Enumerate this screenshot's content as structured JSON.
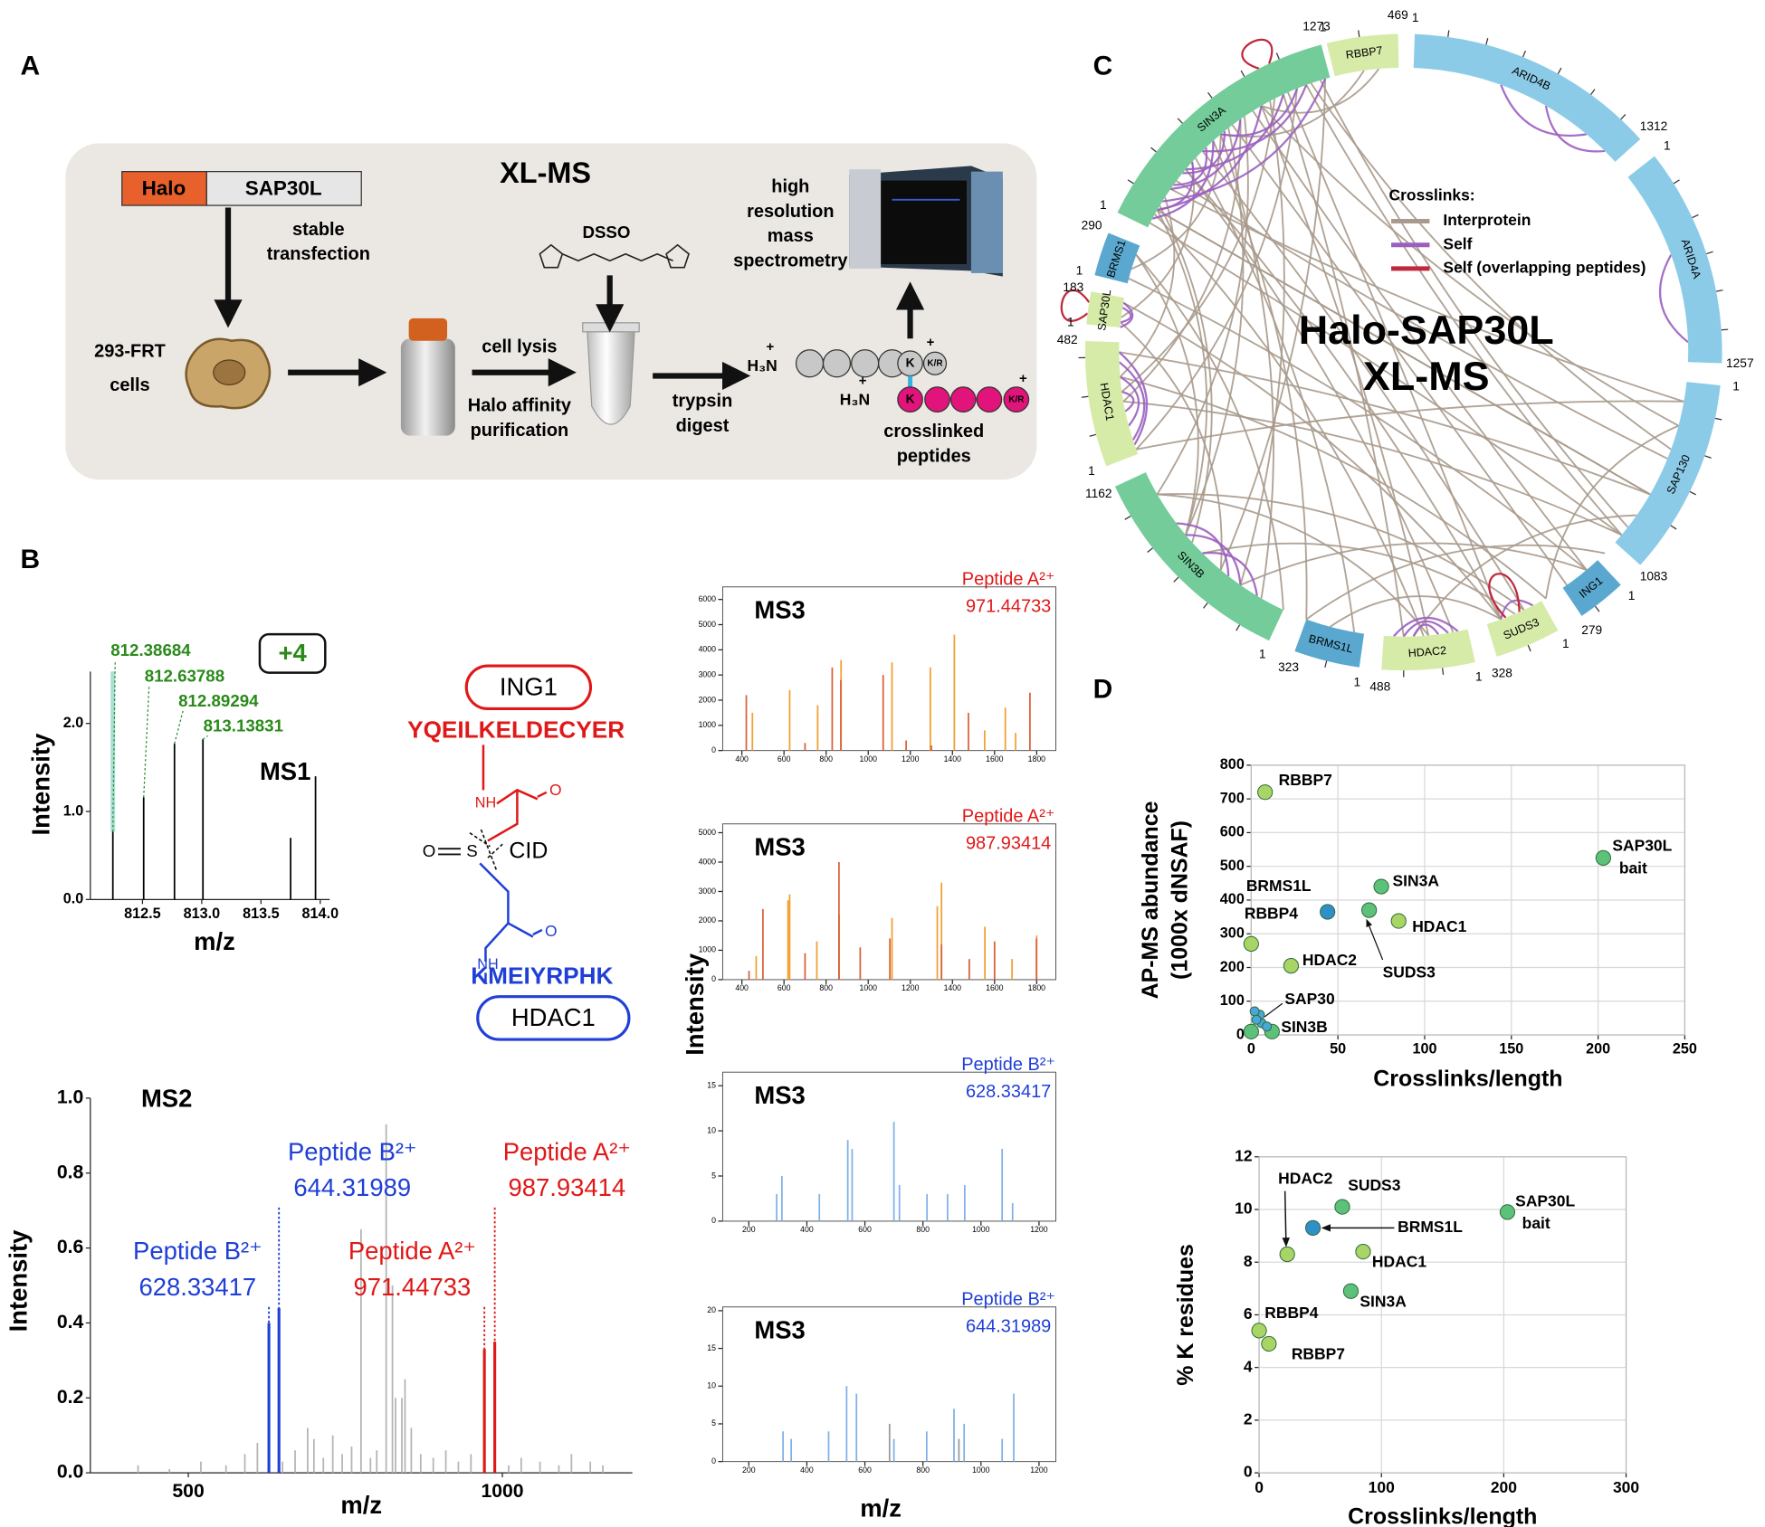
{
  "panel_a": {
    "label": "A",
    "title": "XL-MS",
    "halo": "Halo",
    "sap30l": "SAP30L",
    "transfection": [
      "stable",
      "transfection"
    ],
    "cells": [
      "293-FRT",
      "cells"
    ],
    "lysis": "cell lysis",
    "purification": [
      "Halo affinity",
      "purification"
    ],
    "dsso": "DSSO",
    "digest": [
      "trypsin",
      "digest"
    ],
    "ms": [
      "high",
      "resolution",
      "mass",
      "spectrometry"
    ],
    "peptides": [
      "crosslinked",
      "peptides"
    ],
    "n_term": "H₃N",
    "charge": "+",
    "lysine": "K",
    "c_term": "K/R"
  },
  "panel_b": {
    "label": "B",
    "ms3_x_label": "m/z",
    "ms3_y_label": "Intensity",
    "crosslink": {
      "protein_a": "ING1",
      "peptide_a": "YQEILKELDECYER",
      "peptide_b": "KMEIYRPHK",
      "protein_b": "HDAC1",
      "cleavage": "CID",
      "oxygen": "O",
      "sulfur": "S",
      "amide": "NH"
    }
  },
  "panel_c": {
    "label": "C",
    "title": [
      "Halo-SAP30L",
      "XL-MS"
    ],
    "legend_title": "Crosslinks:",
    "legend": [
      {
        "name": "Interprotein",
        "color": "#a89a8c"
      },
      {
        "name": "Self",
        "color": "#9b5fc0"
      },
      {
        "name": "Self (overlapping peptides)",
        "color": "#c0283c"
      }
    ],
    "segments": [
      {
        "name": "RBBP7",
        "start": "1",
        "end": "469"
      },
      {
        "name": "ARID4B",
        "start": "1",
        "end": "1312"
      },
      {
        "name": "ARID4A",
        "start": "1",
        "end": "1257"
      },
      {
        "name": "SAP130",
        "start": "1",
        "end": "1083"
      },
      {
        "name": "ING1",
        "start": "1",
        "end": "279"
      },
      {
        "name": "SUDS3",
        "start": "1",
        "end": "328"
      },
      {
        "name": "HDAC2",
        "start": "1",
        "end": "488"
      },
      {
        "name": "BRMS1L",
        "start": "1",
        "end": "323"
      },
      {
        "name": "SIN3B",
        "start": "1",
        "end": "1162"
      },
      {
        "name": "HDAC1",
        "start": "1",
        "end": "482"
      },
      {
        "name": "SAP30L",
        "start": "1",
        "end": "183"
      },
      {
        "name": "BRMS1",
        "start": "1",
        "end": "290"
      },
      {
        "name": "SIN3A",
        "start": "1",
        "end": "1273"
      }
    ]
  },
  "panel_d": {
    "label": "D"
  },
  "chart_data": [
    {
      "type": "stem",
      "title": "MS1",
      "x_label": "m/z",
      "y_label": "Intensity",
      "xlim": [
        812.06,
        814.08
      ],
      "ylim": [
        0,
        2.59
      ],
      "xticks": [
        812.5,
        {
          "value": 813,
          "label": "813.0"
        },
        813.5,
        {
          "value": 814,
          "label": "814.0"
        }
      ],
      "yticks": [
        {
          "value": 0,
          "label": "0.0"
        },
        {
          "value": 1,
          "label": "1.0"
        },
        {
          "value": 2,
          "label": "2.0"
        }
      ],
      "series": [
        {
          "color": "#000000",
          "x": [
            812.25,
            812.51,
            812.77,
            813.01,
            813.75,
            813.96
          ],
          "values": [
            0.77,
            1.16,
            1.77,
            1.82,
            0.7,
            1.4
          ]
        }
      ],
      "annotations": [
        "812.38684",
        "812.63788",
        "812.89294",
        "813.13831",
        "+4"
      ]
    },
    {
      "type": "stem",
      "title": "MS2",
      "x_label": "m/z",
      "y_label": "Intensity",
      "xlim": [
        344,
        1207
      ],
      "ylim": [
        0,
        1.0
      ],
      "xticks": [
        500,
        1000
      ],
      "yticks": [
        {
          "value": 0,
          "label": "0.0"
        },
        0.2,
        0.4,
        0.6,
        0.8,
        {
          "value": 1,
          "label": "1.0"
        }
      ],
      "series": [
        {
          "color": "#b4b4b4",
          "x": [
            420,
            470,
            520,
            560,
            590,
            610,
            650,
            670,
            690,
            700,
            715,
            730,
            745,
            760,
            775,
            790,
            800,
            815,
            825,
            830,
            840,
            845,
            855,
            870,
            890,
            910,
            930,
            950,
            1010,
            1030,
            1060,
            1090,
            1110,
            1140,
            1160
          ],
          "values": [
            0.02,
            0.01,
            0.03,
            0.02,
            0.05,
            0.08,
            0.03,
            0.06,
            0.12,
            0.09,
            0.04,
            0.1,
            0.05,
            0.07,
            0.65,
            0.04,
            0.06,
            0.93,
            0.5,
            0.2,
            0.2,
            0.25,
            0.12,
            0.05,
            0.04,
            0.06,
            0.03,
            0.05,
            0.02,
            0.04,
            0.03,
            0.02,
            0.05,
            0.03,
            0.02
          ]
        },
        {
          "color": "#1f3fd6",
          "x": [
            628.3,
            644.3
          ],
          "values": [
            0.4,
            0.44
          ]
        },
        {
          "color": "#e01818",
          "x": [
            971.4,
            987.9
          ],
          "values": [
            0.33,
            0.35
          ]
        }
      ],
      "annotations": [
        "Peptide B²⁺",
        "644.31989",
        "Peptide A²⁺",
        "987.93414",
        "Peptide B²⁺",
        "628.33417",
        "Peptide A²⁺",
        "971.44733"
      ]
    },
    {
      "type": "stem",
      "title": "MS3",
      "xlim": [
        309,
        1891
      ],
      "ylim": [
        0,
        6500
      ],
      "xticks": [
        400,
        600,
        800,
        1000,
        1200,
        1400,
        1600,
        1800
      ],
      "yticks": [
        0,
        1000,
        2000,
        3000,
        4000,
        5000,
        6000
      ],
      "series": [
        {
          "color": "#f0a030",
          "x": [
            450,
            627,
            760,
            871,
            1113,
            1295,
            1409,
            1553,
            1651,
            1700
          ],
          "values": [
            1500,
            2400,
            1800,
            3600,
            3500,
            3300,
            4600,
            800,
            1700,
            700
          ]
        },
        {
          "color": "#d9603a",
          "x": [
            421,
            700,
            829,
            870,
            1071,
            1180,
            1300,
            1476,
            1768
          ],
          "values": [
            2200,
            300,
            3300,
            2800,
            3000,
            400,
            200,
            1500,
            2300
          ]
        }
      ],
      "annotations": [
        "Peptide A²⁺",
        "971.44733"
      ],
      "annotation_color": "#e01818"
    },
    {
      "type": "stem",
      "title": "MS3",
      "xlim": [
        309,
        1891
      ],
      "ylim": [
        0,
        5300
      ],
      "xticks": [
        400,
        600,
        800,
        1000,
        1200,
        1400,
        1600,
        1800
      ],
      "yticks": [
        0,
        1000,
        2000,
        3000,
        4000,
        5000
      ],
      "series": [
        {
          "color": "#f0a030",
          "x": [
            468,
            619,
            627,
            756,
            862,
            1113,
            1328,
            1348,
            1554,
            1683,
            1800
          ],
          "values": [
            800,
            2700,
            2900,
            1300,
            2200,
            2100,
            2500,
            3300,
            1800,
            700,
            1500
          ]
        },
        {
          "color": "#d9603a",
          "x": [
            434,
            500,
            700,
            861,
            962,
            1103,
            1348,
            1480,
            1600,
            1799
          ],
          "values": [
            300,
            2400,
            900,
            4000,
            1100,
            1400,
            1200,
            700,
            1300,
            1400
          ]
        }
      ],
      "annotations": [
        "Peptide A²⁺",
        "987.93414"
      ],
      "annotation_color": "#e01818"
    },
    {
      "type": "stem",
      "title": "MS3",
      "xlim": [
        110,
        1258
      ],
      "ylim": [
        0,
        16.5
      ],
      "xticks": [
        200,
        400,
        600,
        800,
        1000,
        1200
      ],
      "yticks": [
        0,
        5,
        10,
        15
      ],
      "series": [
        {
          "color": "#7fb0e8",
          "x": [
            296,
            314,
            443,
            541,
            556,
            700,
            719,
            814,
            885,
            944,
            1073,
            1109
          ],
          "values": [
            3,
            5,
            3,
            9,
            8,
            11,
            4,
            3,
            3,
            4,
            8,
            2
          ]
        }
      ],
      "annotations": [
        "Peptide B²⁺",
        "628.33417"
      ],
      "annotation_color": "#1f3fd6"
    },
    {
      "type": "stem",
      "title": "MS3",
      "xlim": [
        110,
        1258
      ],
      "ylim": [
        0,
        20.5
      ],
      "xticks": [
        200,
        400,
        600,
        800,
        1000,
        1200
      ],
      "yticks": [
        0,
        5,
        10,
        15,
        20
      ],
      "series": [
        {
          "color": "#7fb0e8",
          "x": [
            318,
            346,
            475,
            537,
            571,
            700,
            813,
            907,
            942,
            1073,
            1113
          ],
          "values": [
            4,
            3,
            4,
            10,
            9,
            3,
            4,
            7,
            5,
            3,
            9
          ]
        },
        {
          "color": "#999999",
          "x": [
            685,
            924
          ],
          "values": [
            5,
            3
          ]
        }
      ],
      "annotations": [
        "Peptide B²⁺",
        "644.31989"
      ],
      "annotation_color": "#1f3fd6"
    },
    {
      "type": "scatter",
      "x_label": "Crosslinks/length",
      "y_label": [
        "AP-MS abundance",
        "(1000x dNSAF)"
      ],
      "xlim": [
        0,
        250
      ],
      "ylim": [
        0,
        800
      ],
      "xticks": [
        0,
        50,
        100,
        150,
        200,
        250
      ],
      "yticks": [
        0,
        100,
        200,
        300,
        400,
        500,
        600,
        700,
        800
      ],
      "grid": true,
      "x": [
        8,
        203,
        75,
        44,
        68,
        85,
        0,
        23,
        5,
        12,
        2,
        6,
        9,
        3,
        0
      ],
      "values": [
        720,
        525,
        440,
        365,
        370,
        338,
        270,
        205,
        60,
        10,
        70,
        35,
        25,
        45,
        10
      ],
      "colors": [
        "#a8d565",
        "#5cc27a",
        "#5cc27a",
        "#2f8fc8",
        "#5cc27a",
        "#a8d565",
        "#a8d565",
        "#a8d565",
        "#4aa8d8",
        "#5cc27a",
        "#4aa8d8",
        "#4aa8d8",
        "#4aa8d8",
        "#4aa8d8",
        "#5cc27a"
      ],
      "labels": [
        "RBBP7",
        "SAP30L",
        "SIN3A",
        "BRMS1L",
        "SUDS3",
        "HDAC1",
        "RBBP4",
        "HDAC2",
        "SAP30",
        "SIN3B",
        null,
        null,
        null,
        null,
        null
      ],
      "annotations": [
        "bait"
      ]
    },
    {
      "type": "scatter",
      "x_label": "Crosslinks/length",
      "y_label": [
        "% K residues"
      ],
      "xlim": [
        0,
        300
      ],
      "ylim": [
        0,
        12
      ],
      "xticks": [
        0,
        100,
        200,
        300
      ],
      "yticks": [
        0,
        2,
        4,
        6,
        8,
        10,
        12
      ],
      "grid": true,
      "x": [
        203,
        68,
        44,
        23,
        85,
        75,
        0,
        8
      ],
      "values": [
        9.9,
        10.1,
        9.3,
        8.3,
        8.4,
        6.9,
        5.4,
        4.9
      ],
      "colors": [
        "#5cc27a",
        "#5cc27a",
        "#2f8fc8",
        "#a8d565",
        "#a8d565",
        "#5cc27a",
        "#a8d565",
        "#a8d565"
      ],
      "labels": [
        "SAP30L",
        "SUDS3",
        "BRMS1L",
        "HDAC2",
        "HDAC1",
        "SIN3A",
        "RBBP4",
        "RBBP7"
      ],
      "annotations": [
        "bait"
      ]
    }
  ]
}
